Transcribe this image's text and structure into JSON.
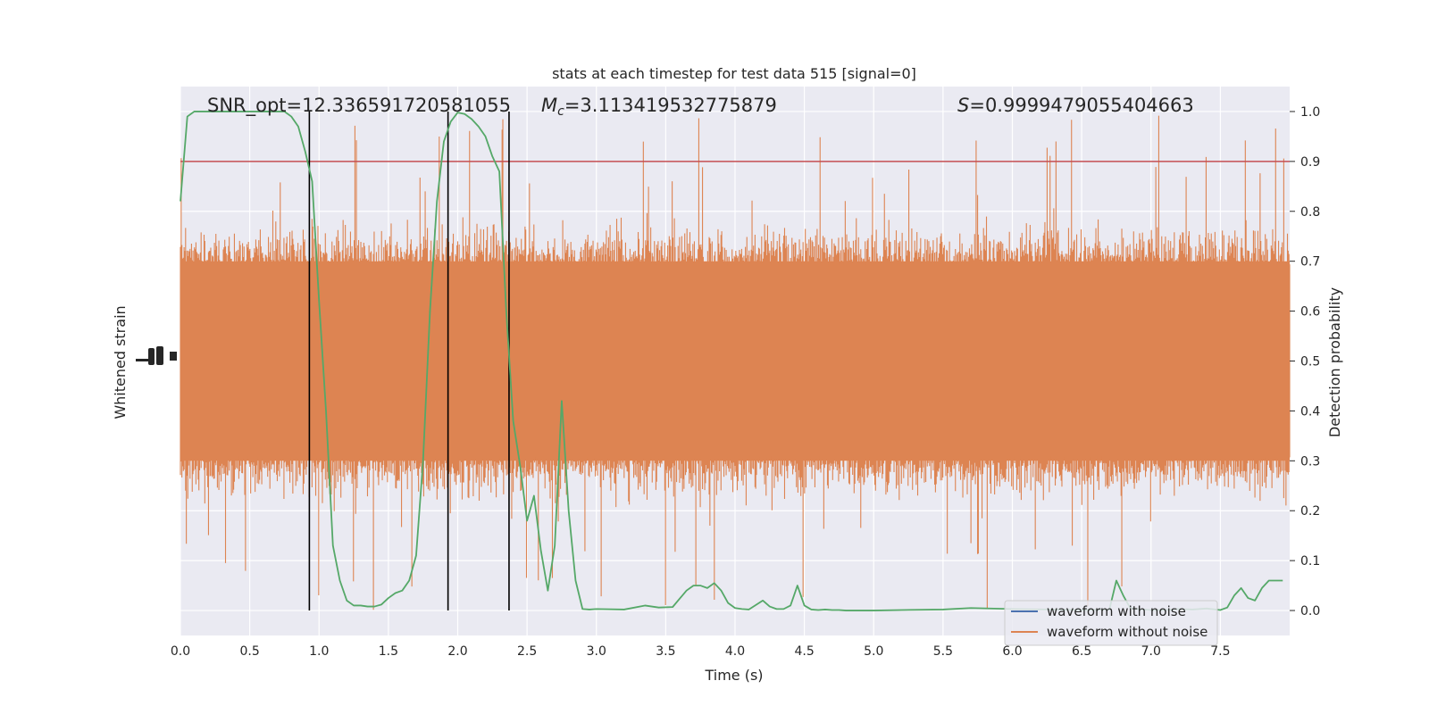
{
  "chart_data": {
    "type": "line",
    "title": "stats at each timestep for test data 515 [signal=0]",
    "xlabel": "Time (s)",
    "ylabel_left": "Whitened strain",
    "ylabel_right": "Detection probability",
    "xlim": [
      0.0,
      8.0
    ],
    "ylim_right": [
      -0.05,
      1.05
    ],
    "xticks": [
      "0.0",
      "0.5",
      "1.0",
      "1.5",
      "2.0",
      "2.5",
      "3.0",
      "3.5",
      "4.0",
      "4.5",
      "5.0",
      "5.5",
      "6.0",
      "6.5",
      "7.0",
      "7.5"
    ],
    "xtick_values": [
      0,
      0.5,
      1,
      1.5,
      2,
      2.5,
      3,
      3.5,
      4,
      4.5,
      5,
      5.5,
      6,
      6.5,
      7,
      7.5
    ],
    "yticks_right": [
      "0.0",
      "0.1",
      "0.2",
      "0.3",
      "0.4",
      "0.5",
      "0.6",
      "0.7",
      "0.8",
      "0.9",
      "1.0"
    ],
    "ytick_right_values": [
      0,
      0.1,
      0.2,
      0.3,
      0.4,
      0.5,
      0.6,
      0.7,
      0.8,
      0.9,
      1.0
    ],
    "grid": true,
    "annotations": {
      "snr": "SNR_opt=12.336591720581055",
      "mc_prefix": "M",
      "mc_sub": "c",
      "mc_value": "=3.113419532775879",
      "s_prefix": "S",
      "s_value": "=0.9999479055404663"
    },
    "threshold": {
      "value": 0.9,
      "color": "#c44e52"
    },
    "vertical_lines_x": [
      0.93,
      1.93,
      2.37
    ],
    "strain_band": {
      "description_units": "detection-probability axis",
      "core_lower": 0.3,
      "core_upper": 0.7,
      "spike_max": 1.0,
      "spike_min": 0.0,
      "color": "#dd8452"
    },
    "series": [
      {
        "name": "waveform with noise",
        "color": "#4c72b0"
      },
      {
        "name": "waveform without noise",
        "color": "#dd8452"
      },
      {
        "color": "#55a868",
        "x": [
          0.0,
          0.05,
          0.1,
          0.2,
          0.3,
          0.4,
          0.5,
          0.6,
          0.7,
          0.75,
          0.8,
          0.85,
          0.9,
          0.95,
          1.0,
          1.05,
          1.1,
          1.15,
          1.2,
          1.25,
          1.3,
          1.35,
          1.4,
          1.45,
          1.5,
          1.55,
          1.6,
          1.65,
          1.7,
          1.75,
          1.8,
          1.85,
          1.9,
          1.95,
          2.0,
          2.05,
          2.1,
          2.15,
          2.2,
          2.25,
          2.3,
          2.35,
          2.4,
          2.45,
          2.5,
          2.55,
          2.6,
          2.65,
          2.7,
          2.75,
          2.8,
          2.85,
          2.9,
          2.95,
          3.0,
          3.2,
          3.35,
          3.45,
          3.55,
          3.65,
          3.7,
          3.75,
          3.8,
          3.85,
          3.9,
          3.95,
          4.0,
          4.05,
          4.1,
          4.2,
          4.25,
          4.3,
          4.35,
          4.4,
          4.45,
          4.5,
          4.55,
          4.6,
          4.65,
          4.7,
          4.75,
          4.8,
          4.9,
          5.0,
          5.2,
          5.5,
          5.7,
          6.0,
          6.3,
          6.5,
          6.7,
          6.75,
          6.8,
          6.85,
          6.9,
          6.95,
          7.0,
          7.1,
          7.2,
          7.3,
          7.4,
          7.5,
          7.55,
          7.6,
          7.65,
          7.7,
          7.75,
          7.8,
          7.85,
          7.9,
          7.95
        ],
        "y": [
          0.82,
          0.99,
          1.0,
          1.0,
          1.0,
          1.0,
          1.0,
          1.0,
          1.0,
          1.0,
          0.99,
          0.97,
          0.92,
          0.86,
          0.62,
          0.4,
          0.13,
          0.06,
          0.02,
          0.01,
          0.01,
          0.008,
          0.008,
          0.012,
          0.025,
          0.035,
          0.04,
          0.06,
          0.11,
          0.3,
          0.6,
          0.82,
          0.94,
          0.98,
          0.998,
          0.995,
          0.985,
          0.97,
          0.95,
          0.91,
          0.88,
          0.6,
          0.38,
          0.29,
          0.18,
          0.23,
          0.12,
          0.04,
          0.13,
          0.42,
          0.2,
          0.06,
          0.003,
          0.002,
          0.003,
          0.002,
          0.01,
          0.006,
          0.007,
          0.04,
          0.05,
          0.05,
          0.045,
          0.055,
          0.04,
          0.015,
          0.005,
          0.003,
          0.002,
          0.02,
          0.008,
          0.003,
          0.003,
          0.01,
          0.05,
          0.01,
          0.002,
          0.001,
          0.002,
          0.001,
          0.001,
          0.0,
          0.0,
          0.0,
          0.001,
          0.002,
          0.005,
          0.003,
          0.002,
          0.001,
          0.002,
          0.06,
          0.03,
          0.005,
          0.003,
          0.002,
          0.001,
          0.001,
          0.003,
          0.002,
          0.004,
          0.001,
          0.006,
          0.03,
          0.045,
          0.025,
          0.02,
          0.045,
          0.06,
          0.06,
          0.06
        ]
      }
    ],
    "legend": {
      "placement": "lower-right"
    },
    "background": "#eaeaf2"
  }
}
